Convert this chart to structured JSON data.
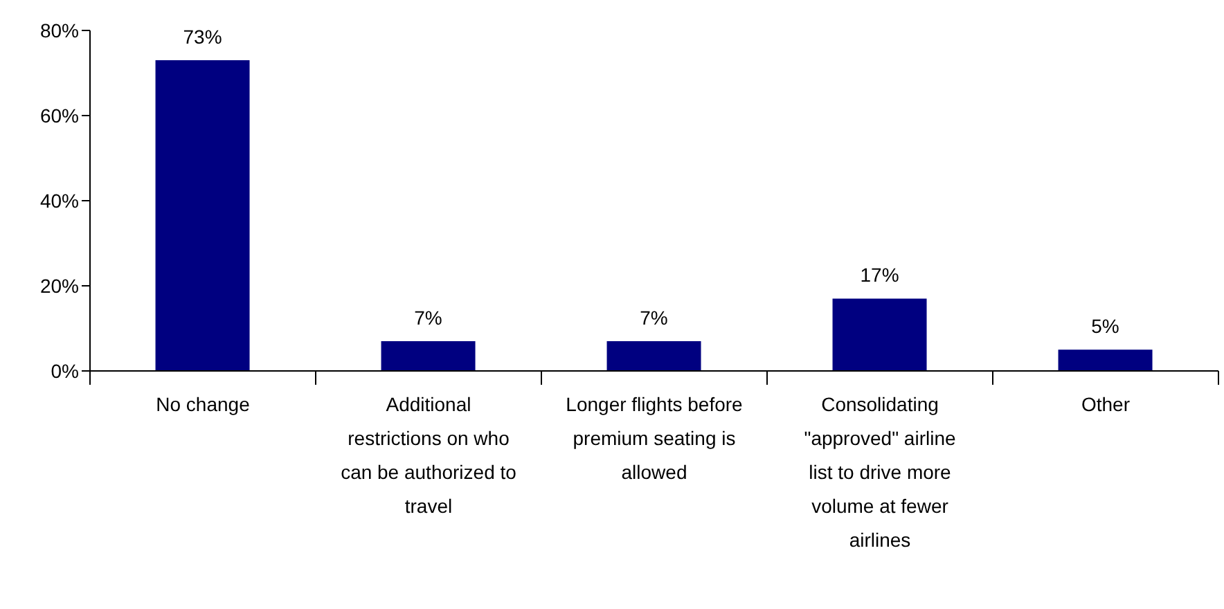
{
  "chart_data": {
    "type": "bar",
    "categories": [
      "No change",
      "Additional restrictions on who can be authorized to travel",
      "Longer flights before premium seating is allowed",
      "Consolidating \"approved\" airline list to drive more volume at fewer airlines",
      "Other"
    ],
    "values": [
      73,
      7,
      7,
      17,
      5
    ],
    "value_labels": [
      "73%",
      "7%",
      "7%",
      "17%",
      "5%"
    ],
    "color": "#000080",
    "ylim": [
      0,
      80
    ],
    "yticks": [
      {
        "value": 0,
        "label": "0%"
      },
      {
        "value": 20,
        "label": "20%"
      },
      {
        "value": 40,
        "label": "40%"
      },
      {
        "value": 60,
        "label": "60%"
      },
      {
        "value": 80,
        "label": "80%"
      }
    ],
    "grid": false,
    "legend": false
  }
}
